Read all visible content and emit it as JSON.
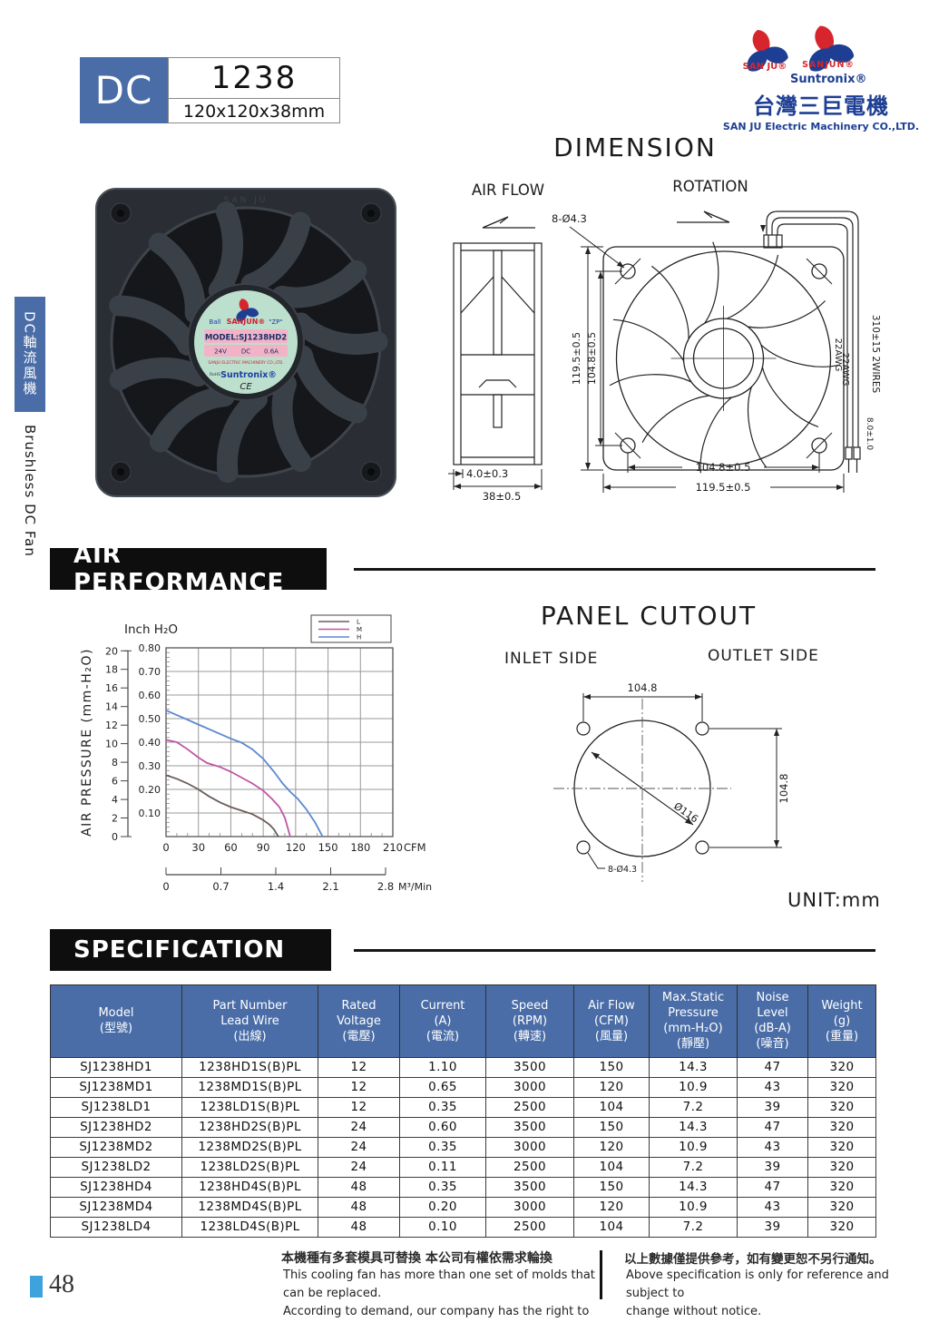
{
  "colors": {
    "accent_blue": "#4a6da7",
    "banner_black": "#0e0e0e",
    "page_marker_blue": "#3ea2dc",
    "curve_L": "#6a5d58",
    "curve_M": "#bf55a4",
    "curve_H": "#5b88cf",
    "sticker_green": "#bcdfce",
    "sticker_pink": "#f3b3c7"
  },
  "header": {
    "series_label": "DC",
    "model": "1238",
    "size": "120x120x38mm"
  },
  "brand": {
    "logo_left_text": "SAN JU®",
    "logo_right_line1": "SANJUN®",
    "logo_right_line2": "Suntronix®",
    "company_zh": "台灣三巨電機",
    "company_en": "SAN JU Electric  Machinery CO.,LTD."
  },
  "sidebar": {
    "tab_zh": "DC軸流風機",
    "tab_en": "Brushless DC Fan"
  },
  "product_label": {
    "frame_embossed": "SAN JU",
    "bearing": "Ball",
    "brand": "SANJUN®",
    "zp": "\"ZP\"",
    "model_line": "MODEL:SJ1238HD2",
    "voltage": "24V",
    "type": "DC",
    "current": "0.6A",
    "company": "SANJU ELECTRIC MACHINERY CO.,LTD.",
    "rohs": "RoHS",
    "suntronix": "Suntronix®",
    "ce": "CE"
  },
  "dimension": {
    "title": "DIMENSION",
    "air_flow_label": "AIR FLOW",
    "rotation_label": "ROTATION",
    "hole_label": "8-Ø4.3",
    "side_depth_flange": "4.0±0.3",
    "side_depth": "38±0.5",
    "front_height_outer": "119.5±0.5",
    "front_height_holes": "104.8±0.5",
    "front_width_holes": "104.8±0.5",
    "front_width_outer": "119.5±0.5",
    "wire_gauge1": "22AWG",
    "wire_gauge2": "22AWG",
    "wire_length": "310±15  2WIRES",
    "wire_pitch": "8.0±1.0"
  },
  "air_performance": {
    "title": "AIR PERFORMANCE"
  },
  "chart_data": {
    "type": "line",
    "y_axis": {
      "label": "Inch H₂O",
      "ticks": [
        0.1,
        0.2,
        0.3,
        0.4,
        0.5,
        0.6,
        0.7,
        0.8
      ],
      "max": 0.8
    },
    "y2_axis": {
      "label": "AIR PRESSURE   (mm-H₂O)",
      "ticks": [
        0,
        2,
        4,
        6,
        8,
        10,
        12,
        14,
        16,
        18,
        20
      ],
      "max": 20
    },
    "x_axis": {
      "label": "CFM",
      "ticks": [
        0,
        30,
        60,
        90,
        120,
        150,
        180,
        210
      ],
      "max": 210
    },
    "x2_axis": {
      "label": "M³/Min",
      "ticks": [
        0,
        0.7,
        1.4,
        2.1,
        2.8
      ]
    },
    "grid": true,
    "legend_position": "top-right",
    "series": [
      {
        "name": "L",
        "color": "#6a5d58",
        "points": [
          [
            0,
            0.26
          ],
          [
            10,
            0.245
          ],
          [
            20,
            0.225
          ],
          [
            30,
            0.2
          ],
          [
            40,
            0.17
          ],
          [
            50,
            0.145
          ],
          [
            60,
            0.125
          ],
          [
            70,
            0.11
          ],
          [
            80,
            0.095
          ],
          [
            90,
            0.07
          ],
          [
            96,
            0.05
          ],
          [
            100,
            0.03
          ],
          [
            104,
            0
          ]
        ]
      },
      {
        "name": "M",
        "color": "#bf55a4",
        "points": [
          [
            0,
            0.41
          ],
          [
            10,
            0.4
          ],
          [
            20,
            0.37
          ],
          [
            30,
            0.335
          ],
          [
            38,
            0.312
          ],
          [
            50,
            0.295
          ],
          [
            60,
            0.275
          ],
          [
            70,
            0.25
          ],
          [
            80,
            0.225
          ],
          [
            90,
            0.195
          ],
          [
            98,
            0.16
          ],
          [
            105,
            0.125
          ],
          [
            110,
            0.08
          ],
          [
            115,
            0
          ]
        ]
      },
      {
        "name": "H",
        "color": "#5b88cf",
        "points": [
          [
            0,
            0.535
          ],
          [
            15,
            0.505
          ],
          [
            30,
            0.475
          ],
          [
            45,
            0.445
          ],
          [
            60,
            0.415
          ],
          [
            70,
            0.398
          ],
          [
            80,
            0.37
          ],
          [
            90,
            0.33
          ],
          [
            100,
            0.275
          ],
          [
            108,
            0.225
          ],
          [
            115,
            0.19
          ],
          [
            122,
            0.16
          ],
          [
            130,
            0.115
          ],
          [
            138,
            0.06
          ],
          [
            145,
            0
          ]
        ]
      }
    ]
  },
  "panel_cutout": {
    "title": "PANEL CUTOUT",
    "inlet_label": "INLET SIDE",
    "outlet_label": "OUTLET SIDE",
    "width_dim": "104.8",
    "height_dim": "104.8",
    "circle_dim": "Ø116",
    "hole_dim": "8-Ø4.3",
    "unit_label": "UNIT:mm"
  },
  "specification": {
    "title": "SPECIFICATION",
    "columns": [
      {
        "lines": [
          "Model",
          "(型號)"
        ]
      },
      {
        "lines": [
          "Part Number",
          "Lead Wire",
          "(出線)"
        ]
      },
      {
        "lines": [
          "Rated",
          "Voltage",
          "(電壓)"
        ]
      },
      {
        "lines": [
          "Current",
          "(A)",
          "(電流)"
        ]
      },
      {
        "lines": [
          "Speed",
          "(RPM)",
          "(轉速)"
        ]
      },
      {
        "lines": [
          "Air Flow",
          "(CFM)",
          "(風量)"
        ]
      },
      {
        "lines": [
          "Max.Static",
          "Pressure",
          "(mm-H₂O)",
          "(靜壓)"
        ]
      },
      {
        "lines": [
          "Noise",
          "Level",
          "(dB-A)",
          "(噪音)"
        ]
      },
      {
        "lines": [
          "Weight",
          "(g)",
          "(重量)"
        ]
      }
    ],
    "rows": [
      [
        "SJ1238HD1",
        "1238HD1S(B)PL",
        "12",
        "1.10",
        "3500",
        "150",
        "14.3",
        "47",
        "320"
      ],
      [
        "SJ1238MD1",
        "1238MD1S(B)PL",
        "12",
        "0.65",
        "3000",
        "120",
        "10.9",
        "43",
        "320"
      ],
      [
        "SJ1238LD1",
        "1238LD1S(B)PL",
        "12",
        "0.35",
        "2500",
        "104",
        "7.2",
        "39",
        "320"
      ],
      [
        "SJ1238HD2",
        "1238HD2S(B)PL",
        "24",
        "0.60",
        "3500",
        "150",
        "14.3",
        "47",
        "320"
      ],
      [
        "SJ1238MD2",
        "1238MD2S(B)PL",
        "24",
        "0.35",
        "3000",
        "120",
        "10.9",
        "43",
        "320"
      ],
      [
        "SJ1238LD2",
        "1238LD2S(B)PL",
        "24",
        "0.11",
        "2500",
        "104",
        "7.2",
        "39",
        "320"
      ],
      [
        "SJ1238HD4",
        "1238HD4S(B)PL",
        "48",
        "0.35",
        "3500",
        "150",
        "14.3",
        "47",
        "320"
      ],
      [
        "SJ1238MD4",
        "1238MD4S(B)PL",
        "48",
        "0.20",
        "3000",
        "120",
        "10.9",
        "43",
        "320"
      ],
      [
        "SJ1238LD4",
        "1238LD4S(B)PL",
        "48",
        "0.10",
        "2500",
        "104",
        "7.2",
        "39",
        "320"
      ]
    ]
  },
  "footer": {
    "left_zh": "本機種有多套模具可替換 本公司有權依需求輪換",
    "left_en1": "This cooling fan has more than one set of molds that  can be replaced.",
    "left_en2": "According to demand, our company has the right to change.",
    "right_zh": "以上數據僅提供參考，如有變更恕不另行通知。",
    "right_en1": "Above specification is only for reference and subject to",
    "right_en2": "change without notice.",
    "page_number": "48"
  }
}
